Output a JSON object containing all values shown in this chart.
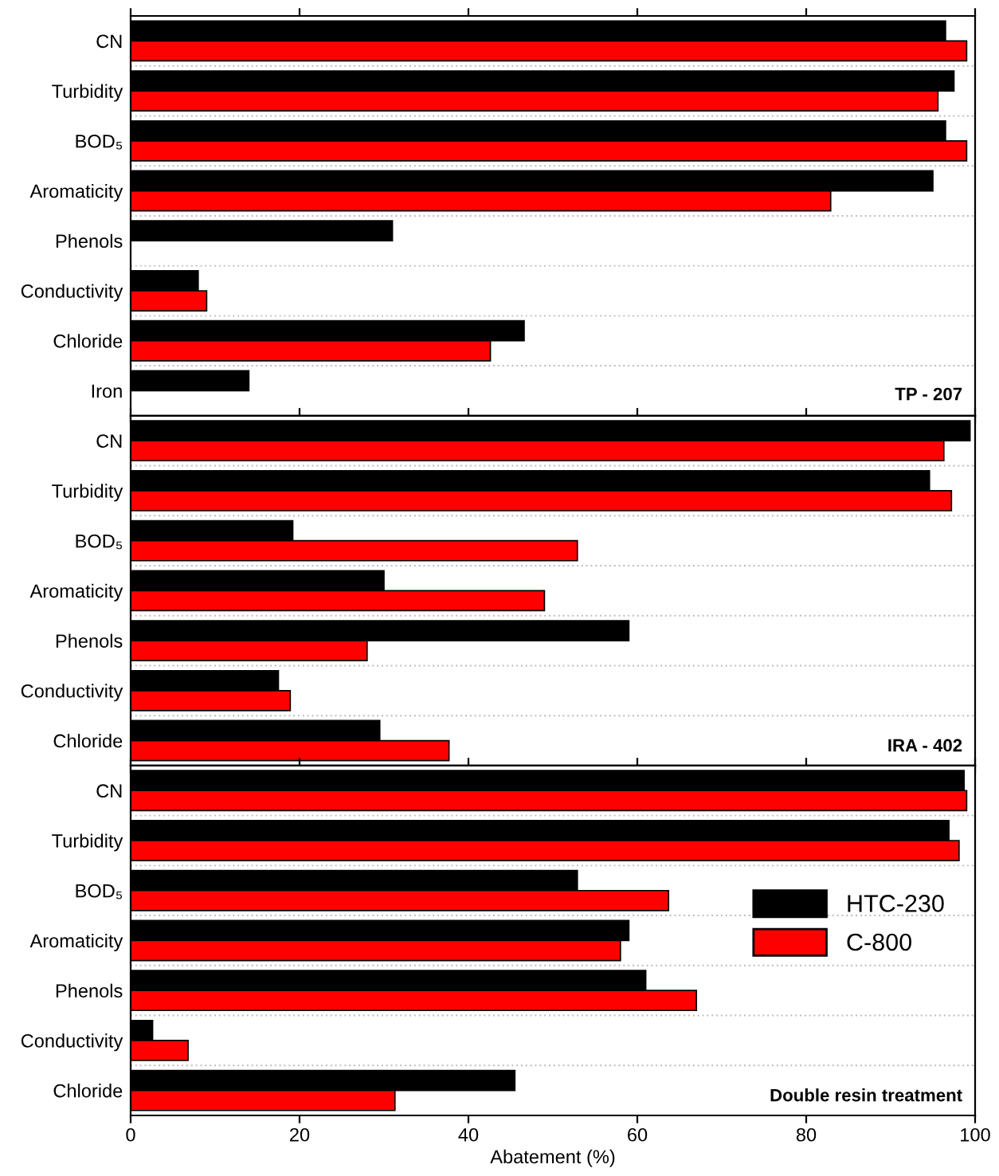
{
  "chart_data": [
    {
      "type": "bar",
      "orientation": "horizontal",
      "categories": [
        "CN",
        "Turbidity",
        "BOD₅",
        "Aromaticity",
        "Phenols",
        "Conductivity",
        "Chloride",
        "Iron"
      ],
      "series": [
        {
          "color": "#000000",
          "values": [
            96.5,
            97.5,
            96.5,
            95,
            31,
            8,
            46.6,
            14
          ]
        },
        {
          "color": "#ff0000",
          "values": [
            99,
            95.6,
            99,
            82.9,
            null,
            9,
            42.6,
            null
          ]
        }
      ],
      "xlim": [
        0,
        100
      ],
      "xticks": [
        0,
        20,
        40,
        60,
        80,
        100
      ],
      "tick_labels": "y",
      "grid": "y",
      "annotations": [
        "TP - 207"
      ]
    },
    {
      "type": "bar",
      "orientation": "horizontal",
      "categories": [
        "CN",
        "Turbidity",
        "BOD₅",
        "Aromaticity",
        "Phenols",
        "Conductivity",
        "Chloride"
      ],
      "series": [
        {
          "color": "#000000",
          "values": [
            99.4,
            94.6,
            19.2,
            30,
            59,
            17.5,
            29.5
          ]
        },
        {
          "color": "#ff0000",
          "values": [
            96.3,
            97.2,
            52.9,
            49,
            28,
            18.9,
            37.7
          ]
        }
      ],
      "xlim": [
        0,
        100
      ],
      "xticks": [
        0,
        20,
        40,
        60,
        80,
        100
      ],
      "tick_labels": "y",
      "grid": "y",
      "annotations": [
        "IRA - 402"
      ]
    },
    {
      "type": "bar",
      "orientation": "horizontal",
      "categories": [
        "CN",
        "Turbidity",
        "BOD₅",
        "Aromaticity",
        "Phenols",
        "Conductivity",
        "Chloride"
      ],
      "series": [
        {
          "name": "HTC-230",
          "color": "#000000",
          "values": [
            98.7,
            96.9,
            52.9,
            59,
            61,
            2.6,
            45.5
          ]
        },
        {
          "name": "C-800",
          "color": "#ff0000",
          "values": [
            99,
            98.1,
            63.7,
            58,
            67,
            6.8,
            31.3
          ]
        }
      ],
      "xlim": [
        0,
        100
      ],
      "xticks": [
        0,
        20,
        40,
        60,
        80,
        100
      ],
      "xlabel": "Abatement (%)",
      "grid": "y",
      "legend": "right",
      "annotations": [
        "Double resin treatment"
      ]
    }
  ]
}
